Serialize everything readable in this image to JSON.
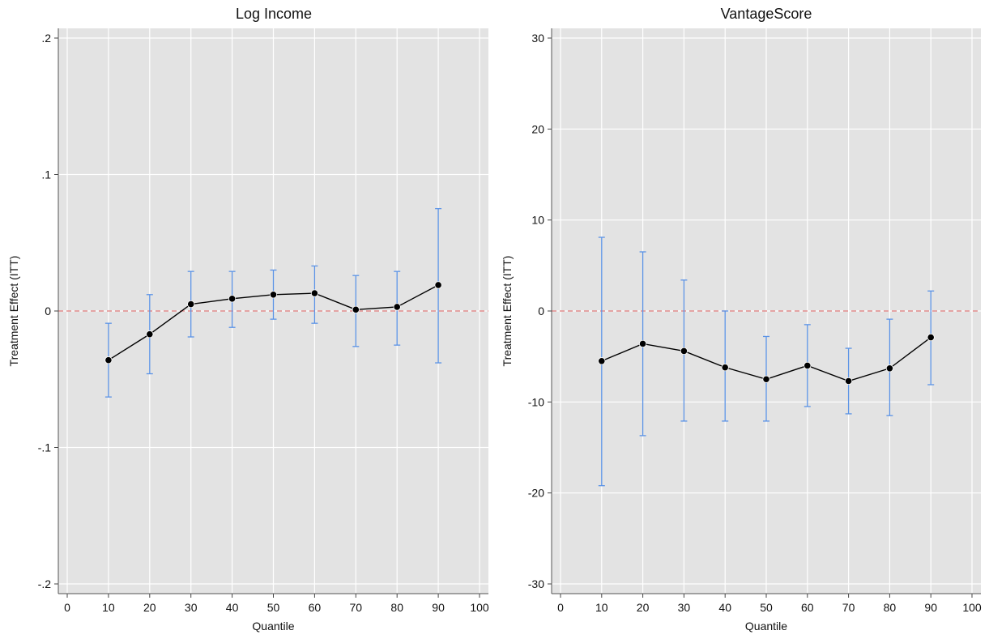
{
  "colors": {
    "panel_bg": "#e3e3e3",
    "grid": "#ffffff",
    "zero_line": "#e07b7b",
    "ci": "#5b93e6",
    "point": "#000000",
    "line": "#000000"
  },
  "chart_data": [
    {
      "type": "line",
      "title": "Log Income",
      "xlabel": "Quantile",
      "ylabel": "Treatment Effect (ITT)",
      "xlim": [
        0,
        100
      ],
      "ylim": [
        -0.2,
        0.2
      ],
      "xticks": [
        0,
        10,
        20,
        30,
        40,
        50,
        60,
        70,
        80,
        90,
        100
      ],
      "xtick_labels": [
        "0",
        "10",
        "20",
        "30",
        "40",
        "50",
        "60",
        "70",
        "80",
        "90",
        "100"
      ],
      "yticks": [
        -0.2,
        -0.1,
        0,
        0.1,
        0.2
      ],
      "ytick_labels": [
        "-.2",
        "-.1",
        "0",
        ".1",
        ".2"
      ],
      "grid": true,
      "reference_line_y": 0,
      "x": [
        10,
        20,
        30,
        40,
        50,
        60,
        70,
        80,
        90
      ],
      "estimate": [
        -0.036,
        -0.017,
        0.005,
        0.009,
        0.012,
        0.013,
        0.001,
        0.003,
        0.019
      ],
      "ci_low": [
        -0.063,
        -0.046,
        -0.019,
        -0.012,
        -0.006,
        -0.009,
        -0.026,
        -0.025,
        -0.038
      ],
      "ci_high": [
        -0.009,
        0.012,
        0.029,
        0.029,
        0.03,
        0.033,
        0.026,
        0.029,
        0.075
      ]
    },
    {
      "type": "line",
      "title": "VantageScore",
      "xlabel": "Quantile",
      "ylabel": "Treatment Effect (ITT)",
      "xlim": [
        0,
        100
      ],
      "ylim": [
        -30,
        30
      ],
      "xticks": [
        0,
        10,
        20,
        30,
        40,
        50,
        60,
        70,
        80,
        90,
        100
      ],
      "xtick_labels": [
        "0",
        "10",
        "20",
        "30",
        "40",
        "50",
        "60",
        "70",
        "80",
        "90",
        "100"
      ],
      "yticks": [
        -30,
        -20,
        -10,
        0,
        10,
        20,
        30
      ],
      "ytick_labels": [
        "-30",
        "-20",
        "-10",
        "0",
        "10",
        "20",
        "30"
      ],
      "grid": true,
      "reference_line_y": 0,
      "x": [
        10,
        20,
        30,
        40,
        50,
        60,
        70,
        80,
        90
      ],
      "estimate": [
        -5.5,
        -3.6,
        -4.4,
        -6.2,
        -7.5,
        -6.0,
        -7.7,
        -6.3,
        -2.9
      ],
      "ci_low": [
        -19.2,
        -13.7,
        -12.1,
        -12.1,
        -12.1,
        -10.5,
        -11.3,
        -11.5,
        -8.1
      ],
      "ci_high": [
        8.1,
        6.5,
        3.4,
        0.0,
        -2.8,
        -1.5,
        -4.1,
        -0.9,
        2.2
      ]
    }
  ]
}
